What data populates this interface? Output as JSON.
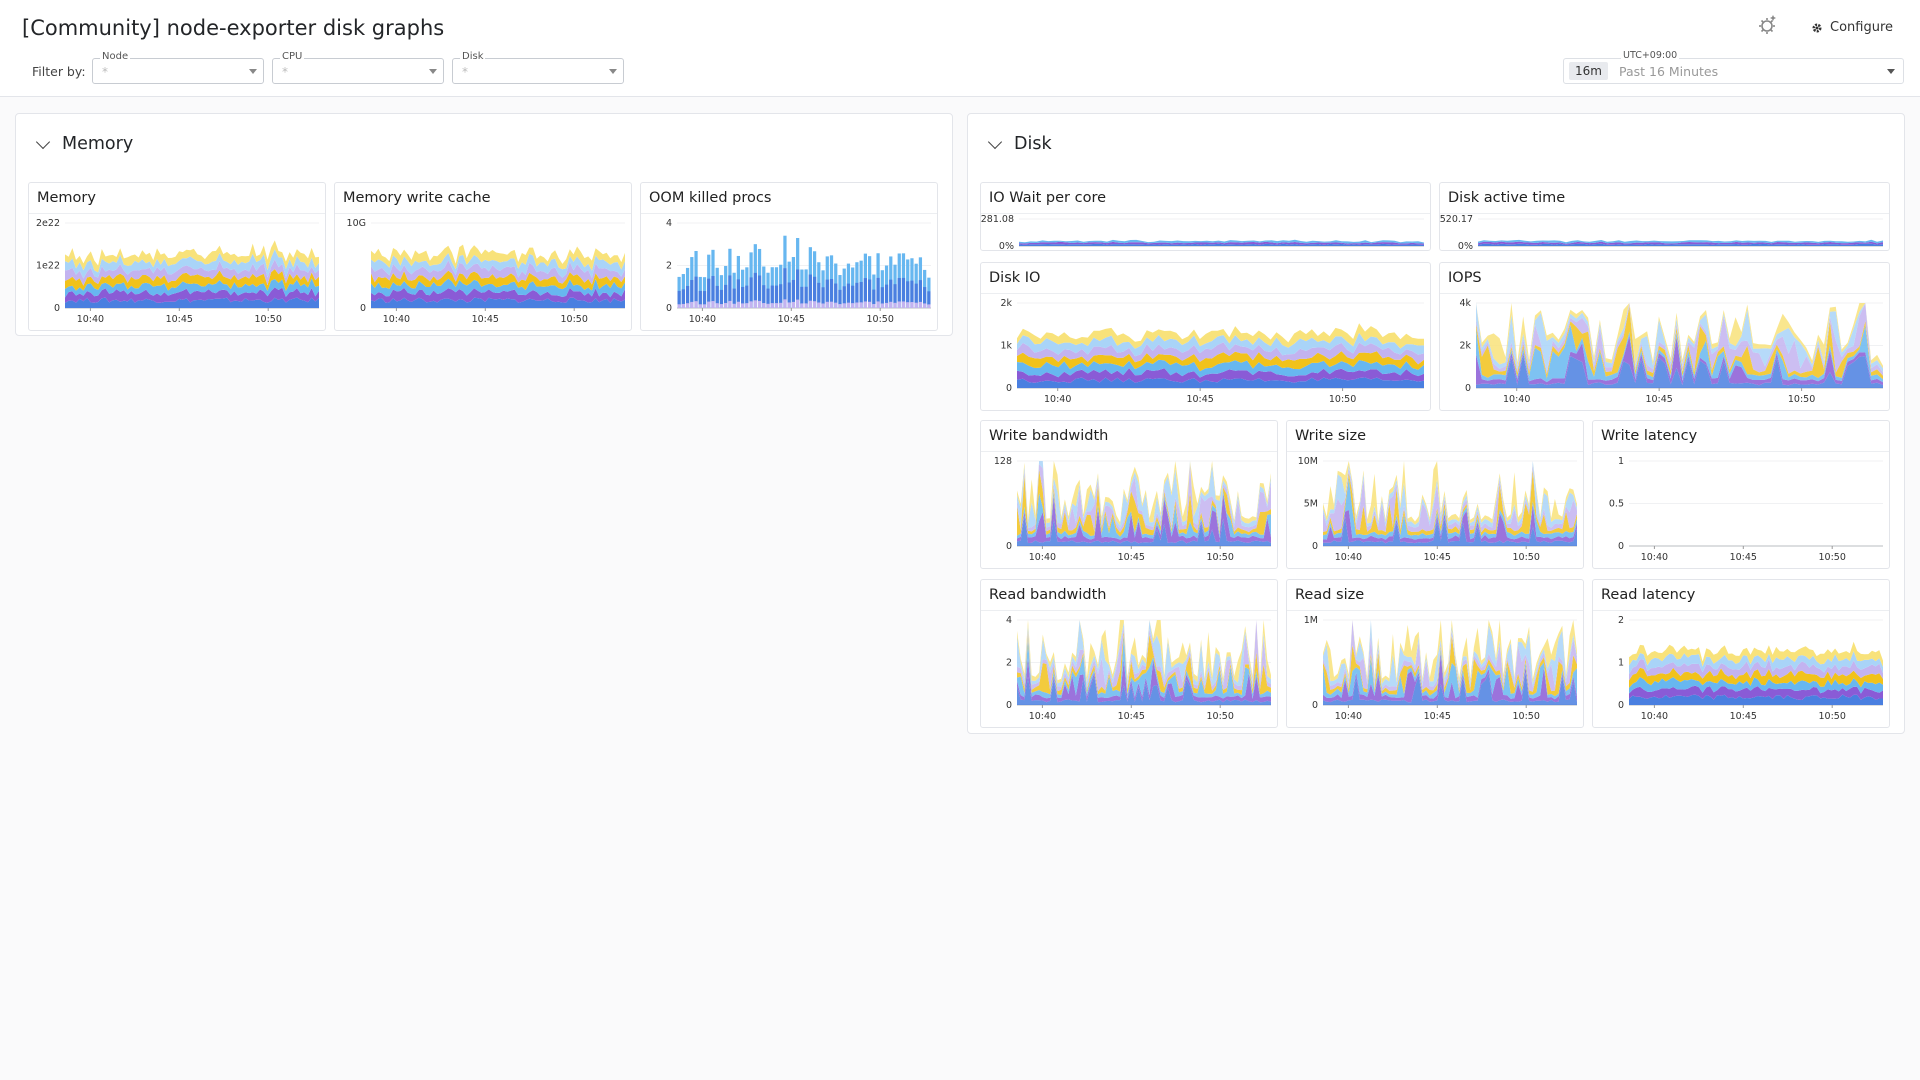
{
  "header": {
    "title": "[Community] node-exporter disk graphs",
    "configure_label": "Configure",
    "filter_label": "Filter by:",
    "filters": [
      {
        "label": "Node",
        "value": "*"
      },
      {
        "label": "CPU",
        "value": "*"
      },
      {
        "label": "Disk",
        "value": "*"
      }
    ],
    "time": {
      "timezone": "UTC+09:00",
      "badge": "16m",
      "range": "Past 16 Minutes"
    }
  },
  "palette": [
    "#4a7fe0",
    "#67b7f0",
    "#a9d4f8",
    "#8a5bd6",
    "#c3b3f0",
    "#f1c21b",
    "#f8e27a",
    "#5aa2ea"
  ],
  "groups": [
    {
      "name": "Memory",
      "widgets": [
        {
          "title": "Memory",
          "kind": "area",
          "yticks": [
            "2e22",
            "1e22",
            "0"
          ],
          "xticks": [
            "10:40",
            "10:45",
            "10:50"
          ]
        },
        {
          "title": "Memory write cache",
          "kind": "area",
          "yticks": [
            "10G",
            "0"
          ],
          "xticks": [
            "10:40",
            "10:45",
            "10:50"
          ]
        },
        {
          "title": "OOM killed procs",
          "kind": "bars",
          "yticks": [
            "4",
            "2",
            "0"
          ],
          "xticks": [
            "10:40",
            "10:45",
            "10:50"
          ]
        }
      ]
    },
    {
      "name": "Disk",
      "widgets": [
        {
          "title": "IO Wait per core",
          "kind": "thin",
          "yticks": [
            "281.08",
            "0%"
          ],
          "xticks": []
        },
        {
          "title": "Disk active time",
          "kind": "thin",
          "yticks": [
            "520.17",
            "0%"
          ],
          "xticks": []
        },
        {
          "title": "Disk IO",
          "kind": "area",
          "yticks": [
            "2k",
            "1k",
            "0"
          ],
          "xticks": [
            "10:40",
            "10:45",
            "10:50"
          ]
        },
        {
          "title": "IOPS",
          "kind": "spiky",
          "yticks": [
            "4k",
            "2k",
            "0"
          ],
          "xticks": [
            "10:40",
            "10:45",
            "10:50"
          ]
        },
        {
          "title": "Write bandwidth",
          "kind": "spiky",
          "yticks": [
            "128",
            "0"
          ],
          "xticks": [
            "10:40",
            "10:45",
            "10:50"
          ]
        },
        {
          "title": "Write size",
          "kind": "spiky",
          "yticks": [
            "10M",
            "5M",
            "0"
          ],
          "xticks": [
            "10:40",
            "10:45",
            "10:50"
          ]
        },
        {
          "title": "Write latency",
          "kind": "flat",
          "yticks": [
            "1",
            "0.5",
            "0"
          ],
          "xticks": [
            "10:40",
            "10:45",
            "10:50"
          ]
        },
        {
          "title": "Read bandwidth",
          "kind": "spiky",
          "yticks": [
            "4",
            "2",
            "0"
          ],
          "xticks": [
            "10:40",
            "10:45",
            "10:50"
          ]
        },
        {
          "title": "Read size",
          "kind": "spiky",
          "yticks": [
            "1M",
            "0"
          ],
          "xticks": [
            "10:40",
            "10:45",
            "10:50"
          ]
        },
        {
          "title": "Read latency",
          "kind": "area",
          "yticks": [
            "2",
            "1",
            "0"
          ],
          "xticks": [
            "10:40",
            "10:45",
            "10:50"
          ]
        }
      ]
    }
  ]
}
